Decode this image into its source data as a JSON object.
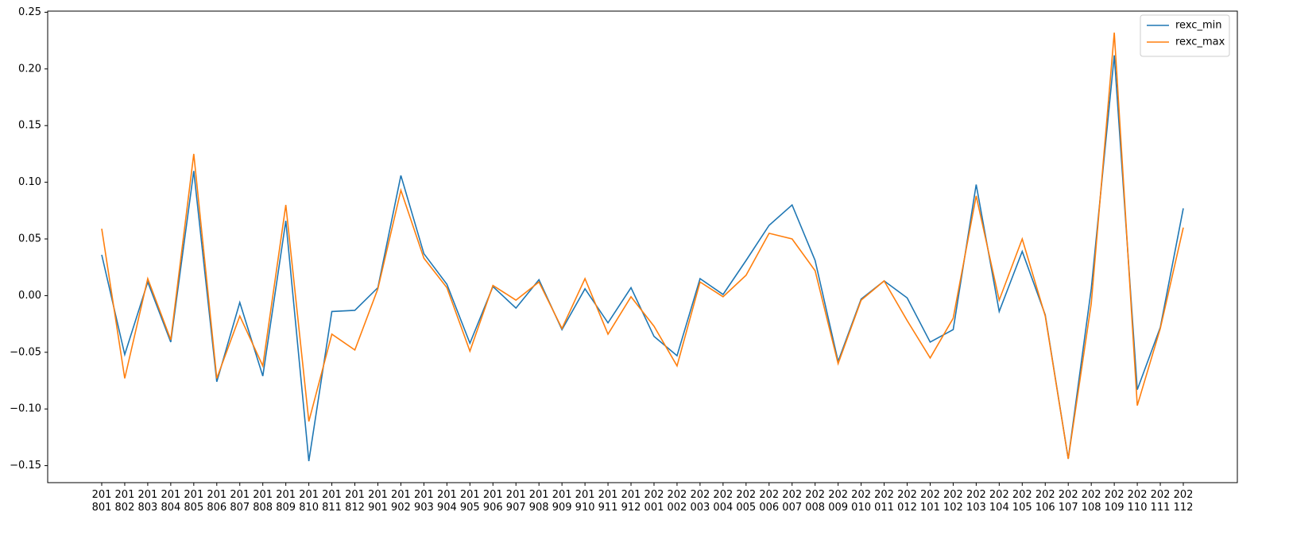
{
  "chart_data": {
    "type": "line",
    "categories": [
      "201801",
      "201802",
      "201803",
      "201804",
      "201805",
      "201806",
      "201807",
      "201808",
      "201809",
      "201810",
      "201811",
      "201812",
      "201901",
      "201902",
      "201903",
      "201904",
      "201905",
      "201906",
      "201907",
      "201908",
      "201909",
      "201910",
      "201911",
      "201912",
      "202001",
      "202002",
      "202003",
      "202004",
      "202005",
      "202006",
      "202007",
      "202008",
      "202009",
      "202010",
      "202011",
      "202012",
      "202101",
      "202102",
      "202103",
      "202104",
      "202105",
      "202106",
      "202107",
      "202108",
      "202109",
      "202110",
      "202111",
      "202112"
    ],
    "series": [
      {
        "name": "rexc_min",
        "color": "#1f77b4",
        "values": [
          0.036,
          -0.052,
          0.012,
          -0.041,
          0.11,
          -0.076,
          -0.006,
          -0.071,
          0.066,
          -0.146,
          -0.014,
          -0.013,
          0.007,
          0.106,
          0.037,
          0.01,
          -0.042,
          0.008,
          -0.011,
          0.014,
          -0.03,
          0.006,
          -0.024,
          0.007,
          -0.036,
          -0.053,
          0.015,
          0.001,
          0.031,
          0.062,
          0.08,
          0.031,
          -0.058,
          -0.003,
          0.013,
          -0.002,
          -0.041,
          -0.03,
          0.098,
          -0.014,
          0.039,
          -0.017,
          -0.144,
          0.006,
          0.212,
          -0.083,
          -0.028,
          0.077
        ]
      },
      {
        "name": "rexc_max",
        "color": "#ff7f0e",
        "values": [
          0.059,
          -0.073,
          0.015,
          -0.039,
          0.125,
          -0.073,
          -0.018,
          -0.062,
          0.08,
          -0.111,
          -0.034,
          -0.048,
          0.006,
          0.093,
          0.033,
          0.007,
          -0.049,
          0.009,
          -0.004,
          0.012,
          -0.029,
          0.015,
          -0.034,
          -0.001,
          -0.027,
          -0.062,
          0.012,
          -0.001,
          0.018,
          0.055,
          0.05,
          0.022,
          -0.06,
          -0.004,
          0.013,
          -0.022,
          -0.055,
          -0.02,
          0.088,
          -0.004,
          0.05,
          -0.018,
          -0.144,
          -0.007,
          0.232,
          -0.097,
          -0.029,
          0.06
        ]
      }
    ],
    "ylim": [
      -0.165,
      0.251
    ],
    "yticks": [
      {
        "value": -0.15,
        "label": "−0.15"
      },
      {
        "value": -0.1,
        "label": "−0.10"
      },
      {
        "value": -0.05,
        "label": "−0.05"
      },
      {
        "value": 0,
        "label": "0.00"
      },
      {
        "value": 0.05,
        "label": "0.05"
      },
      {
        "value": 0.1,
        "label": "0.10"
      },
      {
        "value": 0.15,
        "label": "0.15"
      },
      {
        "value": 0.2,
        "label": "0.20"
      },
      {
        "value": 0.25,
        "label": "0.25"
      }
    ],
    "grid": false,
    "legend": "upper right"
  }
}
